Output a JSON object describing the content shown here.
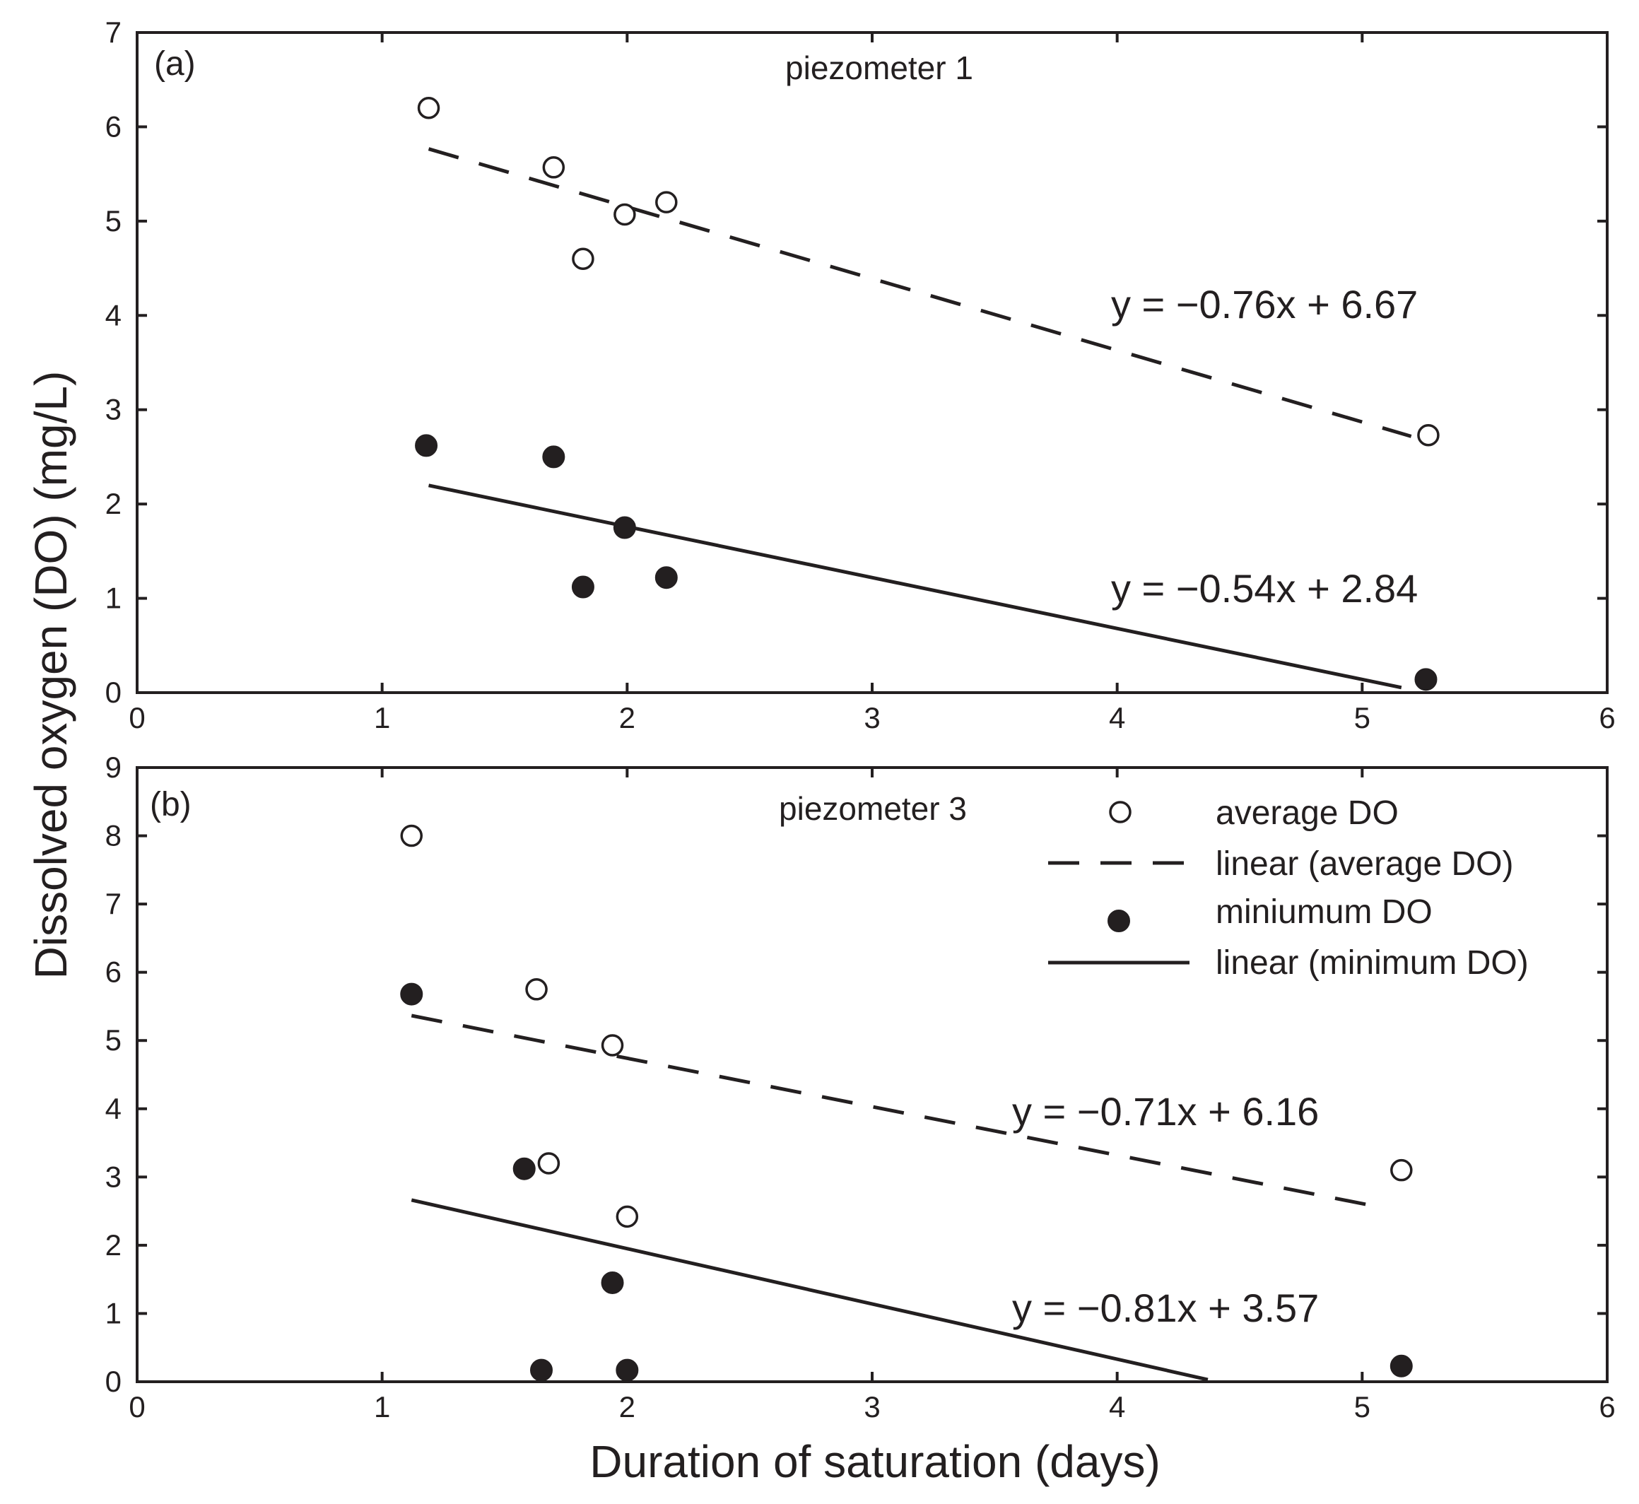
{
  "chart_data": {
    "type": "scatter",
    "shared": {
      "xlabel": "Duration of saturation (days)",
      "ylabel": "Dissolved oxygen (DO) (mg/L)"
    },
    "legend": {
      "placement": "top-right of panel (b)",
      "entries": [
        {
          "label": "average DO",
          "kind": "open-circle"
        },
        {
          "label": "linear (average DO)",
          "kind": "dashed-line"
        },
        {
          "label": "miniumum DO",
          "kind": "filled-circle"
        },
        {
          "label": "linear (minimum DO)",
          "kind": "solid-line"
        }
      ]
    },
    "panels": [
      {
        "id": "a",
        "panel_label": "(a)",
        "title": "piezometer 1",
        "xlim": [
          0,
          6
        ],
        "ylim": [
          0,
          7
        ],
        "xticks": [
          0,
          1,
          2,
          3,
          4,
          5,
          6
        ],
        "yticks": [
          0,
          1,
          2,
          3,
          4,
          5,
          6,
          7
        ],
        "series": [
          {
            "name": "average DO",
            "marker": "open",
            "x": [
              1.19,
              1.7,
              1.82,
              1.99,
              2.16,
              5.27
            ],
            "y": [
              6.2,
              5.57,
              4.6,
              5.07,
              5.2,
              2.73
            ]
          },
          {
            "name": "miniumum DO",
            "marker": "filled",
            "x": [
              1.18,
              1.7,
              1.82,
              1.99,
              2.16,
              5.26
            ],
            "y": [
              2.62,
              2.5,
              1.12,
              1.75,
              1.22,
              0.14
            ]
          }
        ],
        "fits": [
          {
            "series": "average DO",
            "style": "dashed",
            "slope": -0.76,
            "intercept": 6.67,
            "x_range": [
              1.19,
              5.2
            ],
            "equation": "y = −0.76x + 6.67"
          },
          {
            "series": "miniumum DO",
            "style": "solid",
            "slope": -0.54,
            "intercept": 2.84,
            "x_range": [
              1.19,
              5.16
            ],
            "equation": "y = −0.54x + 2.84"
          }
        ]
      },
      {
        "id": "b",
        "panel_label": "(b)",
        "title": "piezometer 3",
        "xlim": [
          0,
          6
        ],
        "ylim": [
          0,
          9
        ],
        "xticks": [
          0,
          1,
          2,
          3,
          4,
          5,
          6
        ],
        "yticks": [
          0,
          1,
          2,
          3,
          4,
          5,
          6,
          7,
          8,
          9
        ],
        "series": [
          {
            "name": "average DO",
            "marker": "open",
            "x": [
              1.12,
              1.63,
              1.68,
              1.94,
              2.0,
              5.16
            ],
            "y": [
              8.0,
              5.75,
              3.2,
              4.93,
              2.42,
              3.1
            ]
          },
          {
            "name": "miniumum DO",
            "marker": "filled",
            "x": [
              1.12,
              1.58,
              1.65,
              1.94,
              2.0,
              5.16
            ],
            "y": [
              5.68,
              3.12,
              0.17,
              1.45,
              0.17,
              0.23
            ]
          }
        ],
        "fits": [
          {
            "series": "average DO",
            "style": "dashed",
            "slope": -0.71,
            "intercept": 6.16,
            "x_range": [
              1.12,
              5.05
            ],
            "equation": "y = −0.71x + 6.16"
          },
          {
            "series": "miniumum DO",
            "style": "solid",
            "slope": -0.81,
            "intercept": 3.57,
            "x_range": [
              1.12,
              4.37
            ],
            "equation": "y = −0.81x + 3.57"
          }
        ]
      }
    ]
  }
}
